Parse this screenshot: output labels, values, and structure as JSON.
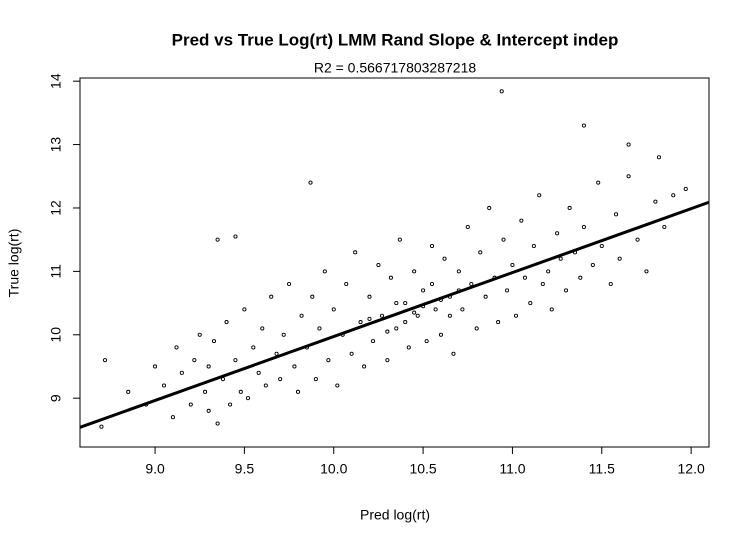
{
  "chart_data": {
    "type": "scatter",
    "title": "Pred vs True Log(rt) LMM Rand Slope & Intercept indep",
    "subtitle": "R2 = 0.566717803287218",
    "x_label": "Pred log(rt)",
    "y_label": "True log(rt)",
    "xlim": [
      8.58,
      12.1
    ],
    "ylim": [
      8.23,
      14.05
    ],
    "xticks": [
      {
        "value": 9,
        "label": "9.0"
      },
      9.5,
      {
        "value": 10,
        "label": "10.0"
      },
      10.5,
      {
        "value": 11,
        "label": "11.0"
      },
      11.5,
      {
        "value": 12,
        "label": "12.0"
      }
    ],
    "yticks": [
      9,
      10,
      11,
      12,
      13,
      14
    ],
    "color": "#000000",
    "x": [
      9.05,
      9.1,
      9.12,
      9.15,
      9.2,
      9.22,
      9.25,
      9.28,
      9.3,
      9.3,
      9.33,
      9.35,
      9.38,
      9.4,
      9.42,
      9.45,
      9.48,
      9.5,
      9.52,
      9.55,
      9.58,
      9.6,
      9.62,
      9.65,
      9.68,
      9.7,
      9.72,
      9.75,
      9.78,
      9.8,
      9.82,
      9.85,
      9.88,
      9.9,
      9.92,
      9.95,
      9.97,
      10.0,
      10.02,
      10.05,
      10.07,
      10.1,
      10.12,
      10.15,
      10.17,
      10.2,
      10.22,
      10.25,
      10.27,
      10.3,
      10.32,
      10.35,
      10.37,
      10.4,
      10.42,
      10.45,
      10.47,
      10.5,
      10.52,
      10.55,
      10.57,
      10.6,
      10.62,
      10.65,
      10.67,
      10.7,
      10.72,
      10.75,
      10.77,
      10.8,
      10.82,
      10.85,
      10.87,
      10.9,
      10.92,
      10.95,
      10.97,
      11.0,
      11.02,
      11.05,
      11.07,
      11.1,
      11.12,
      11.15,
      11.17,
      11.2,
      11.22,
      11.25,
      11.27,
      11.3,
      11.32,
      11.35,
      11.38,
      11.4,
      11.45,
      11.48,
      11.5,
      11.55,
      11.58,
      11.6,
      11.65,
      11.7,
      11.75,
      11.8,
      11.85,
      11.9,
      9.0,
      8.95,
      8.85,
      10.4,
      10.5,
      10.6,
      10.3,
      10.45,
      10.55,
      10.35,
      10.65,
      10.2,
      10.7,
      8.72,
      8.7,
      10.94,
      11.4,
      11.65,
      9.87,
      9.35,
      9.45,
      11.82,
      11.97
    ],
    "y": [
      9.2,
      8.7,
      9.8,
      9.4,
      8.9,
      9.6,
      10.0,
      9.1,
      8.8,
      9.5,
      9.9,
      8.6,
      9.3,
      10.2,
      8.9,
      9.6,
      9.1,
      10.4,
      9.0,
      9.8,
      9.4,
      10.1,
      9.2,
      10.6,
      9.7,
      9.3,
      10.0,
      10.8,
      9.5,
      9.1,
      10.3,
      9.8,
      10.6,
      9.3,
      10.1,
      11.0,
      9.6,
      10.4,
      9.2,
      10.0,
      10.8,
      9.7,
      11.3,
      10.2,
      9.5,
      10.6,
      9.9,
      11.1,
      10.3,
      9.6,
      10.9,
      10.1,
      11.5,
      10.5,
      9.8,
      11.0,
      10.3,
      10.7,
      9.9,
      11.4,
      10.4,
      10.0,
      11.2,
      10.6,
      9.7,
      11.0,
      10.4,
      11.7,
      10.8,
      10.1,
      11.3,
      10.6,
      12.0,
      10.9,
      10.2,
      11.5,
      10.7,
      11.1,
      10.3,
      11.8,
      10.9,
      10.5,
      11.4,
      12.2,
      10.8,
      11.0,
      10.4,
      11.6,
      11.2,
      10.7,
      12.0,
      11.3,
      10.9,
      11.7,
      11.1,
      12.4,
      11.4,
      10.8,
      11.9,
      11.2,
      12.5,
      11.5,
      11.0,
      12.1,
      11.7,
      12.2,
      9.5,
      8.9,
      9.1,
      10.2,
      10.45,
      10.55,
      10.05,
      10.35,
      10.8,
      10.5,
      10.3,
      10.25,
      10.7,
      9.6,
      8.55,
      13.84,
      13.3,
      13.0,
      12.4,
      11.5,
      11.55,
      12.8,
      12.3
    ],
    "fit_line": {
      "x": [
        8.58,
        12.1
      ],
      "y": [
        8.54,
        12.09
      ]
    }
  }
}
